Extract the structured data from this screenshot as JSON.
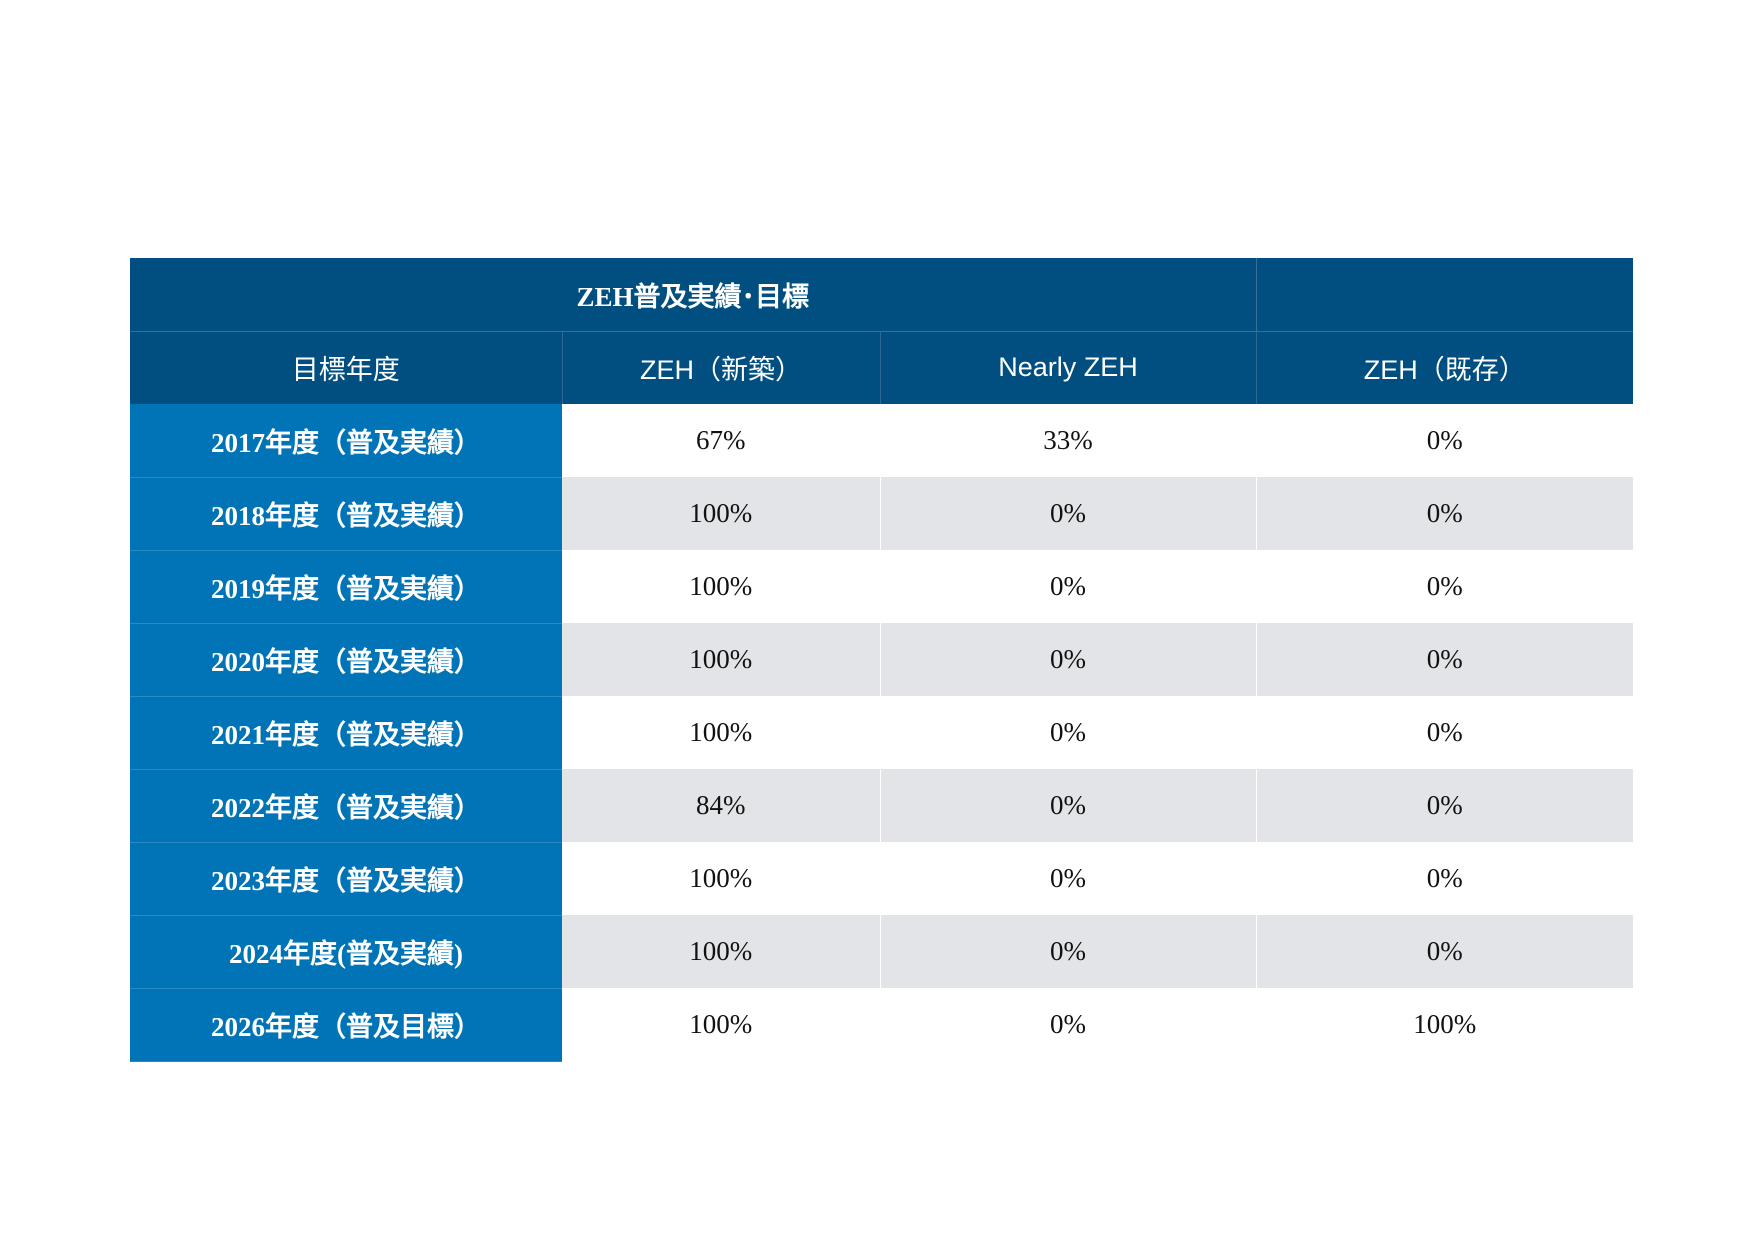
{
  "table": {
    "title": "ZEH普及実績･目標",
    "columns": [
      "目標年度",
      "ZEH（新築）",
      "Nearly ZEH",
      "ZEH（既存）"
    ],
    "rows": [
      {
        "year": "2017年度（普及実績）",
        "zeh_new": "67%",
        "nearly_zeh": "33%",
        "zeh_existing": "0%"
      },
      {
        "year": "2018年度（普及実績）",
        "zeh_new": "100%",
        "nearly_zeh": "0%",
        "zeh_existing": "0%"
      },
      {
        "year": "2019年度（普及実績）",
        "zeh_new": "100%",
        "nearly_zeh": "0%",
        "zeh_existing": "0%"
      },
      {
        "year": "2020年度（普及実績）",
        "zeh_new": "100%",
        "nearly_zeh": "0%",
        "zeh_existing": "0%"
      },
      {
        "year": "2021年度（普及実績）",
        "zeh_new": "100%",
        "nearly_zeh": "0%",
        "zeh_existing": "0%"
      },
      {
        "year": "2022年度（普及実績）",
        "zeh_new": "84%",
        "nearly_zeh": "0%",
        "zeh_existing": "0%"
      },
      {
        "year": "2023年度（普及実績）",
        "zeh_new": "100%",
        "nearly_zeh": "0%",
        "zeh_existing": "0%"
      },
      {
        "year": "2024年度(普及実績)",
        "zeh_new": "100%",
        "nearly_zeh": "0%",
        "zeh_existing": "0%"
      },
      {
        "year": "2026年度（普及目標）",
        "zeh_new": "100%",
        "nearly_zeh": "0%",
        "zeh_existing": "100%"
      }
    ]
  },
  "colors": {
    "header_navy": "#004f80",
    "year_blue": "#0074b6",
    "stripe_gray": "#e3e4e7"
  }
}
